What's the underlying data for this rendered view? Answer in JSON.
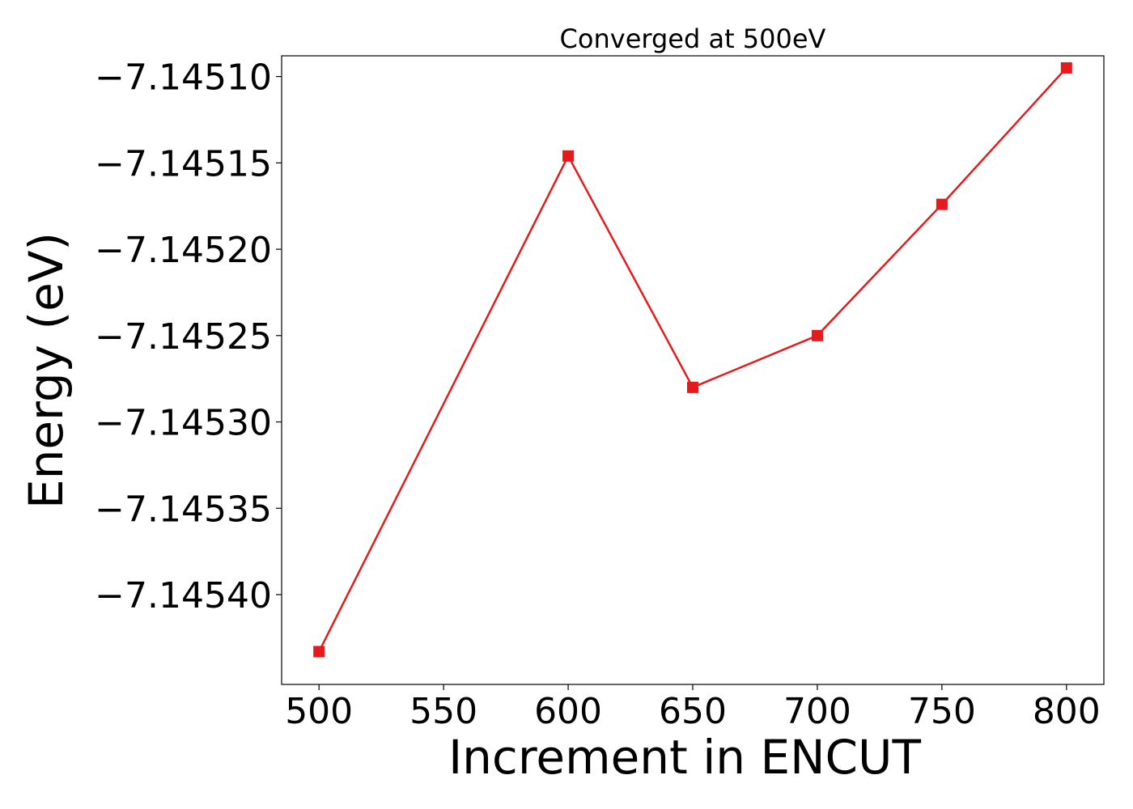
{
  "chart_data": {
    "type": "line",
    "title": "Converged at 500eV",
    "xlabel": "Increment in ENCUT",
    "ylabel": "Energy (eV)",
    "x": [
      500,
      600,
      650,
      700,
      750,
      800
    ],
    "series": [
      {
        "values": [
          -7.145433,
          -7.145146,
          -7.14528,
          -7.14525,
          -7.145174,
          -7.145095
        ],
        "color": "#e41a1c",
        "marker": "square"
      }
    ],
    "xticks": [
      500,
      550,
      600,
      650,
      700,
      750,
      800
    ],
    "xtick_labels": [
      "500",
      "550",
      "600",
      "650",
      "700",
      "750",
      "800"
    ],
    "yticks": [
      -7.1451,
      -7.14515,
      -7.1452,
      -7.14525,
      -7.1453,
      -7.14535,
      -7.1454
    ],
    "ytick_labels": [
      "−7.14510",
      "−7.14515",
      "−7.14520",
      "−7.14525",
      "−7.14530",
      "−7.14535",
      "−7.14540"
    ],
    "xlim": [
      485,
      815
    ],
    "ylim": [
      -7.145452,
      -7.145088
    ],
    "grid": false,
    "legend": "none"
  }
}
